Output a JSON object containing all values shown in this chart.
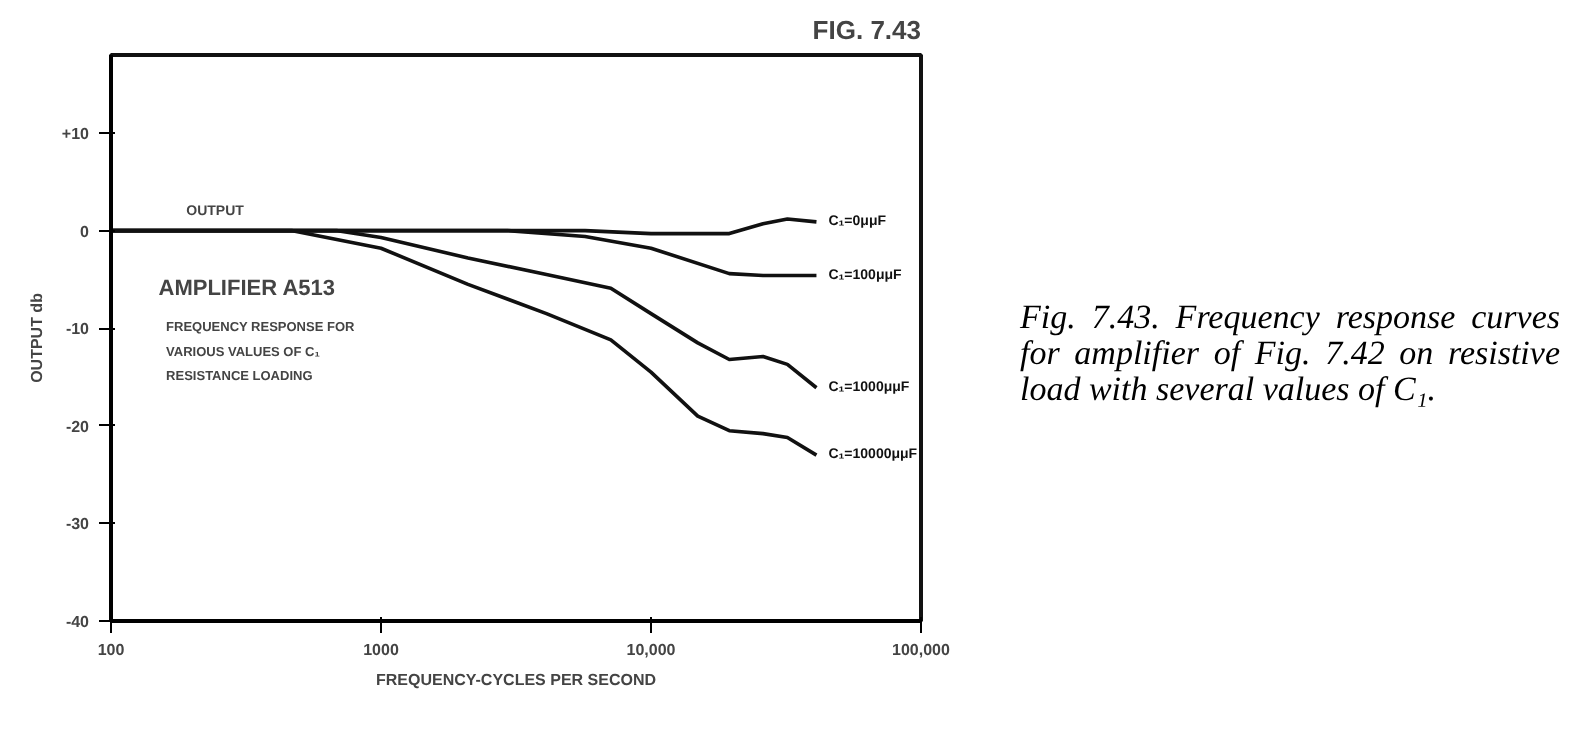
{
  "chart_data": {
    "type": "line",
    "title": "FIG. 7.43",
    "xlabel": "FREQUENCY-CYCLES PER SECOND",
    "ylabel": "OUTPUT db",
    "log": "x",
    "xlim": [
      100,
      100000
    ],
    "ylim": [
      -40,
      18
    ],
    "xticks": [
      100,
      1000,
      {
        "value": 10000,
        "label": "10,000"
      },
      {
        "value": 100000,
        "label": "100,000"
      }
    ],
    "yticks": [
      {
        "value": 10,
        "label": "+10"
      },
      0,
      -10,
      -20,
      -30,
      -40
    ],
    "grid": false,
    "marker": "none",
    "line_style": "solid",
    "series": [
      {
        "name": "C₁=0μμF",
        "color": "#111111",
        "x": [
          100,
          1000,
          5700,
          10000,
          19500,
          26000,
          32000,
          41000
        ],
        "values": [
          0,
          0,
          0,
          -0.3,
          -0.3,
          0.7,
          1.2,
          0.9
        ]
      },
      {
        "name": "C₁=100μμF",
        "color": "#111111",
        "x": [
          100,
          1000,
          2950,
          5700,
          10000,
          19500,
          26000,
          41000
        ],
        "values": [
          0,
          0,
          0,
          -0.6,
          -1.8,
          -4.4,
          -4.6,
          -4.6
        ]
      },
      {
        "name": "C₁=1000μμF",
        "color": "#111111",
        "x": [
          100,
          690,
          1000,
          2100,
          4100,
          7100,
          10000,
          14900,
          19500,
          26000,
          32000,
          41000
        ],
        "values": [
          0,
          0,
          -0.7,
          -2.8,
          -4.5,
          -5.9,
          -8.5,
          -11.5,
          -13.2,
          -12.9,
          -13.7,
          -16.1
        ]
      },
      {
        "name": "C₁=10000μμF",
        "color": "#111111",
        "x": [
          100,
          470,
          1000,
          2100,
          4100,
          7100,
          10000,
          14900,
          19500,
          26000,
          32000,
          41000
        ],
        "values": [
          0,
          0,
          -1.8,
          -5.5,
          -8.5,
          -11.2,
          -14.5,
          -19,
          -20.5,
          -20.8,
          -21.2,
          -23
        ]
      }
    ],
    "annotations": [
      "OUTPUT",
      "AMPLIFIER A513",
      "FREQUENCY RESPONSE FOR",
      "VARIOUS VALUES OF C₁",
      "RESISTANCE LOADING",
      "Fig. 7.43. Frequency response curves for amplifier of Fig. 7.42 on resistive load with several values of C₁."
    ]
  }
}
